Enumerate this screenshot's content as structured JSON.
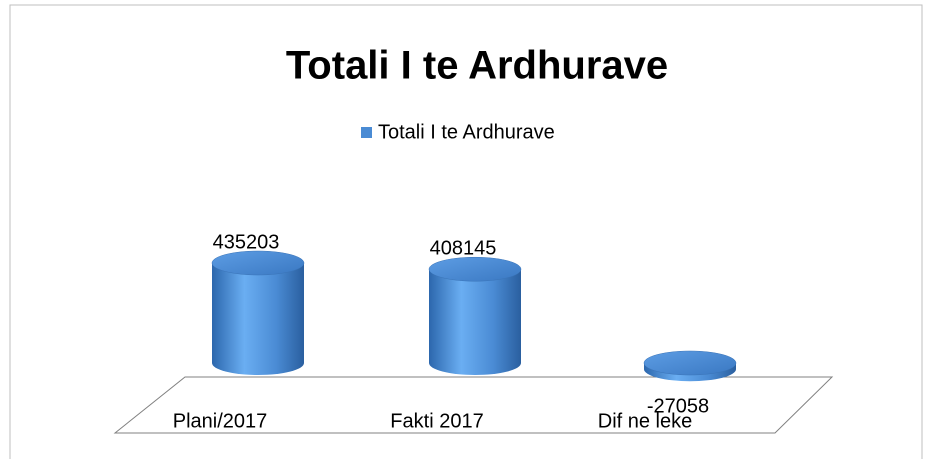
{
  "chart_data": {
    "type": "cylinder",
    "title": "Totali I te Ardhurave",
    "categories": [
      "Plani/2017",
      "Fakti  2017",
      "Dif ne leke"
    ],
    "series": [
      {
        "name": "Totali I te Ardhurave",
        "color": "#4a8bd4",
        "values": [
          435203,
          408145,
          -27058
        ]
      }
    ]
  }
}
